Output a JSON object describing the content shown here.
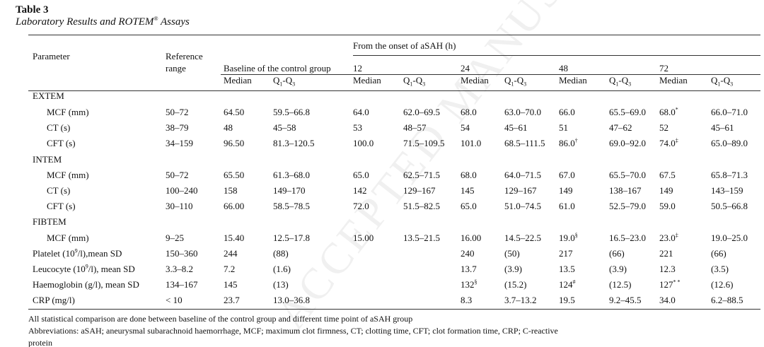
{
  "title": "Table 3",
  "subtitle": "Laboratory Results and ROTEM",
  "subtitle_sup": "®",
  "subtitle_end": " Assays",
  "header": {
    "parameter": "Parameter",
    "reference_1": "Reference",
    "reference_2": "range",
    "baseline": "Baseline of the  control group",
    "onset": "From the onset of aSAH (h)",
    "timepoints": [
      "12",
      "24",
      "48",
      "72"
    ],
    "median": "Median",
    "q_label": "Q",
    "q_sub1": "1",
    "q_mid": "-Q",
    "q_sub3": "3"
  },
  "rows": [
    {
      "type": "group",
      "label": "EXTEM"
    },
    {
      "type": "sub",
      "cells": [
        "MCF (mm)",
        "50–72",
        "64.50",
        "59.5–66.8",
        "64.0",
        "62.0–69.5",
        "68.0",
        "63.0–70.0",
        "66.0",
        "65.5–69.0",
        [
          "68.0",
          "*"
        ],
        "66.0–71.0"
      ]
    },
    {
      "type": "sub",
      "cells": [
        "CT (s)",
        "38–79",
        "48",
        "45–58",
        "53",
        "48–57",
        "54",
        "45–61",
        "51",
        "47–62",
        "52",
        "45–61"
      ]
    },
    {
      "type": "sub",
      "cells": [
        "CFT (s)",
        "34–159",
        "96.50",
        "81.3–120.5",
        "100.0",
        "71.5–109.5",
        "101.0",
        "68.5–111.5",
        [
          "86.0",
          "†"
        ],
        "69.0–92.0",
        [
          "74.0",
          "‡"
        ],
        "65.0–89.0"
      ]
    },
    {
      "type": "group",
      "label": "INTEM"
    },
    {
      "type": "sub",
      "cells": [
        "MCF (mm)",
        "50–72",
        "65.50",
        "61.3–68.0",
        "65.0",
        "62.5–71.5",
        "68.0",
        "64.0–71.5",
        "67.0",
        "65.5–70.0",
        "67.5",
        "65.8–71.3"
      ]
    },
    {
      "type": "sub",
      "cells": [
        "CT (s)",
        "100–240",
        "158",
        "149–170",
        "142",
        "129–167",
        "145",
        "129–167",
        "149",
        "138–167",
        "149",
        "143–159"
      ]
    },
    {
      "type": "sub",
      "cells": [
        "CFT (s)",
        "30–110",
        "66.00",
        "58.5–78.5",
        "72.0",
        "51.5–82.5",
        "65.0",
        "51.0–74.5",
        "61.0",
        "52.5–79.0",
        "59.0",
        "50.5–66.8"
      ]
    },
    {
      "type": "group",
      "label": "FIBTEM"
    },
    {
      "type": "sub",
      "cells": [
        "MCF (mm)",
        "9–25",
        "15.40",
        "12.5–17.8",
        "15.00",
        "13.5–21.5",
        "16.00",
        "14.5–22.5",
        [
          "19.0",
          "§"
        ],
        "16.5–23.0",
        [
          "23.0",
          "‡"
        ],
        "19.0–25.0"
      ]
    },
    {
      "type": "main",
      "cells": [
        [
          "Platelet (10",
          "9",
          "/l),mean SD"
        ],
        "150–360",
        "244",
        "(88)",
        "",
        "",
        "240",
        "(50)",
        "217",
        "(66)",
        "221",
        "(66)"
      ]
    },
    {
      "type": "main",
      "cells": [
        [
          "Leucocyte (10",
          "9",
          "/l), mean SD"
        ],
        "3.3–8.2",
        "7.2",
        "(1.6)",
        "",
        "",
        "13.7",
        "(3.9)",
        "13.5",
        "(3.9)",
        "12.3",
        "(3.5)"
      ]
    },
    {
      "type": "main",
      "cells": [
        "Haemoglobin (g/l),  mean SD",
        "134–167",
        "145",
        "(13)",
        "",
        "",
        [
          "132",
          "§"
        ],
        "(15.2)",
        [
          "124",
          "#"
        ],
        "(12.5)",
        [
          "127",
          "*   *"
        ],
        "(12.6)"
      ]
    },
    {
      "type": "main",
      "cells": [
        "CRP (mg/l)",
        "< 10",
        "23.7",
        "13.0–36.8",
        "",
        "",
        "8.3",
        "3.7–13.2",
        "19.5",
        "9.2–45.5",
        "34.0",
        "6.2–88.5"
      ]
    }
  ],
  "footnotes": [
    "All statistical comparison are done between baseline of the control group and  different time point of aSAH group",
    "Abbreviations: aSAH; aneurysmal subarachnoid haemorrhage,  MCF; maximum clot firmness, CT; clotting time, CFT; clot formation time, CRP; C-reactive",
    "protein"
  ],
  "watermark": "ACCEPTED MANUSCRIPT"
}
